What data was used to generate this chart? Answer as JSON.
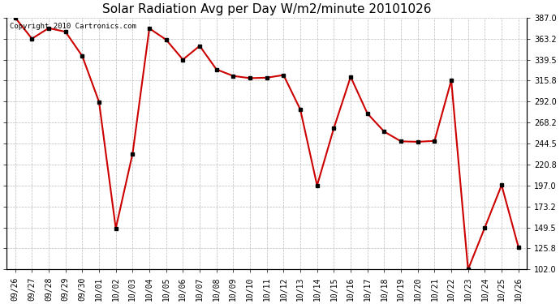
{
  "title": "Solar Radiation Avg per Day W/m2/minute 20101026",
  "copyright_text": "Copyright 2010 Cartronics.com",
  "x_labels": [
    "09/26",
    "09/27",
    "09/28",
    "09/29",
    "09/30",
    "10/01",
    "10/02",
    "10/03",
    "10/04",
    "10/05",
    "10/06",
    "10/07",
    "10/08",
    "10/09",
    "10/10",
    "10/11",
    "10/12",
    "10/13",
    "10/14",
    "10/15",
    "10/16",
    "10/17",
    "10/18",
    "10/19",
    "10/20",
    "10/21",
    "10/22",
    "10/23",
    "10/24",
    "10/25",
    "10/26"
  ],
  "y_values": [
    387.0,
    363.2,
    375.1,
    371.0,
    343.5,
    291.7,
    148.5,
    233.0,
    374.8,
    362.0,
    339.5,
    355.0,
    328.4,
    321.0,
    318.5,
    319.0,
    322.0,
    283.0,
    197.0,
    262.0,
    320.0,
    278.5,
    258.0,
    247.0,
    246.5,
    247.5,
    316.0,
    102.0,
    149.5,
    197.5,
    127.5
  ],
  "line_color": "#cc0000",
  "marker": "s",
  "marker_size": 2.5,
  "marker_facecolor": "#000000",
  "marker_edgecolor": "#000000",
  "bg_color": "#ffffff",
  "grid_color": "#bbbbbb",
  "ylim": [
    102.0,
    387.0
  ],
  "yticks": [
    102.0,
    125.8,
    149.5,
    173.2,
    197.0,
    220.8,
    244.5,
    268.2,
    292.0,
    315.8,
    339.5,
    363.2,
    387.0
  ],
  "title_fontsize": 11,
  "tick_fontsize": 7,
  "copyright_fontsize": 6.5,
  "line_width": 1.5
}
